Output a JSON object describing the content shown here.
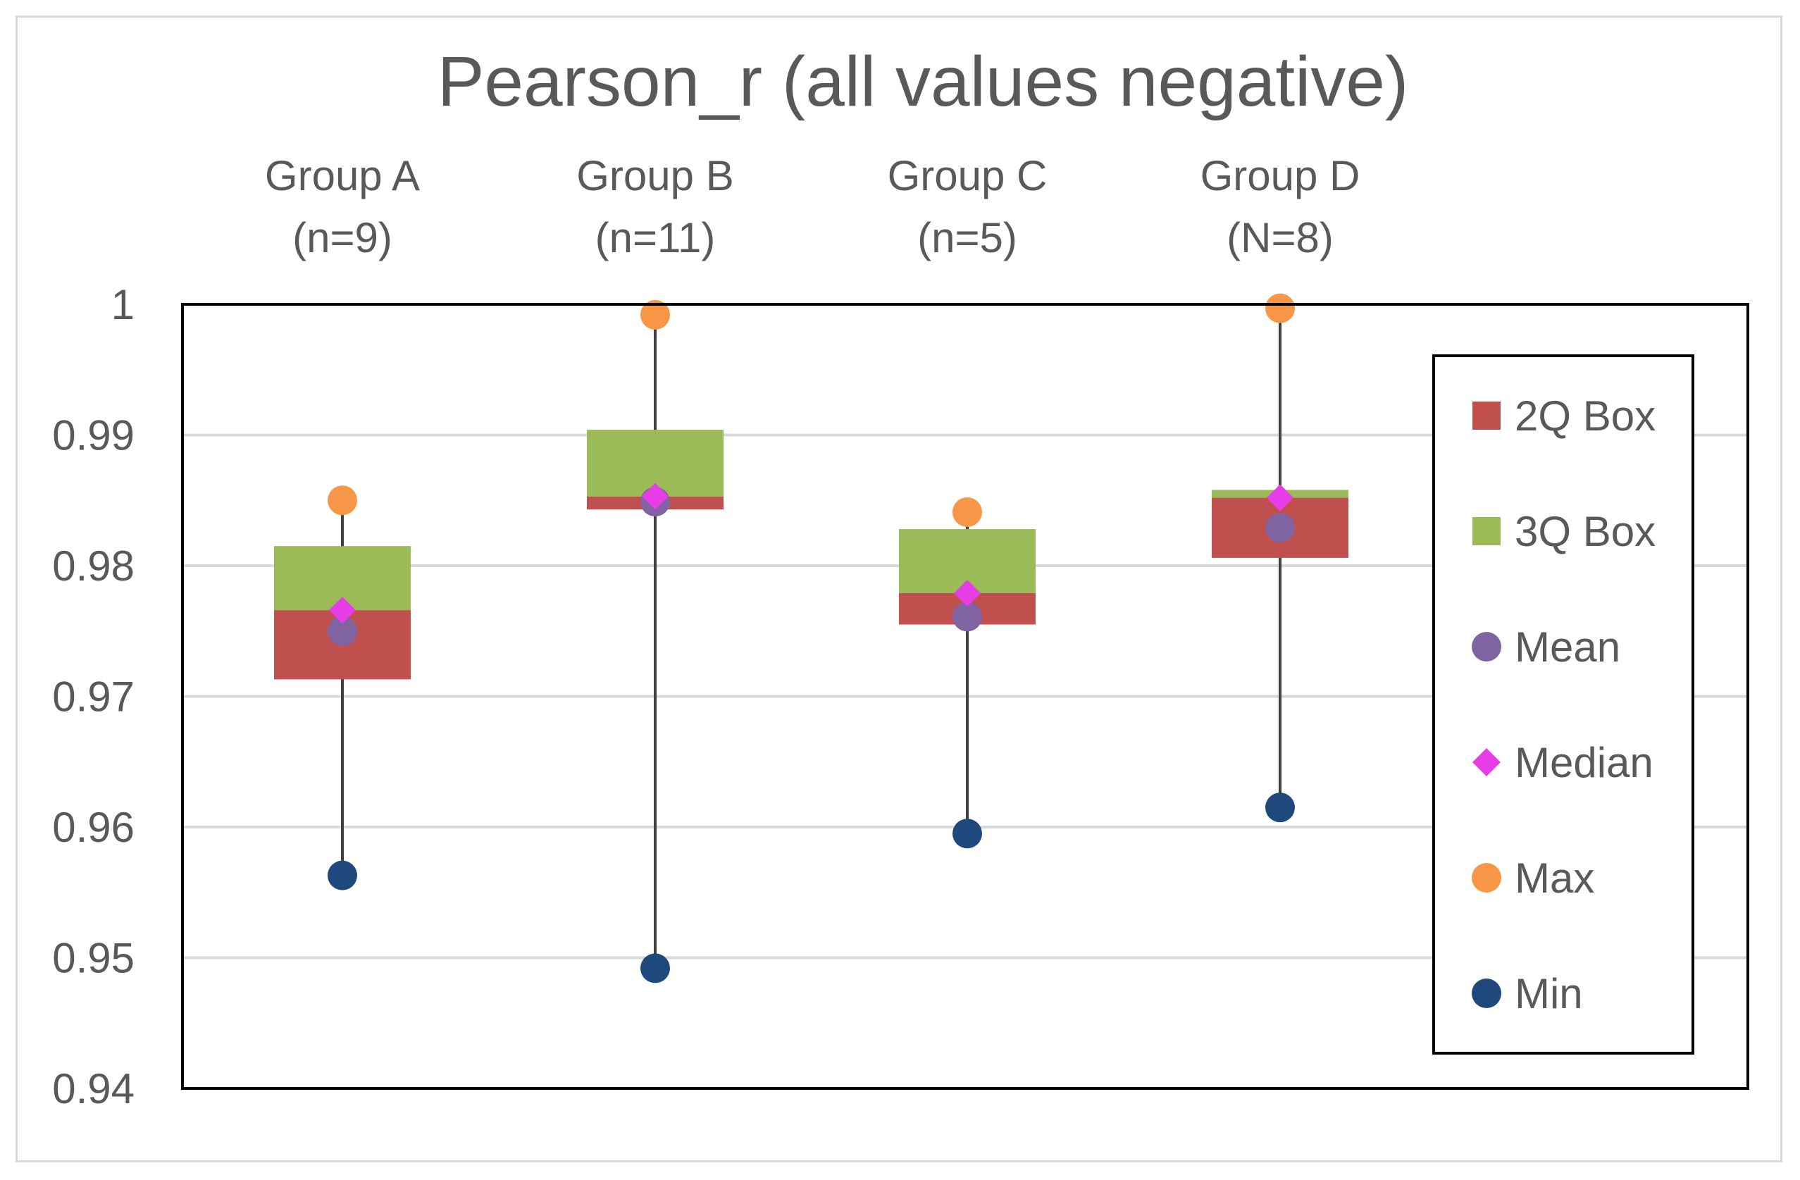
{
  "chart_data": {
    "type": "box",
    "title": "Pearson_r  (all values negative)",
    "ylim": [
      0.94,
      1.0
    ],
    "ytick_labels": [
      "0.94",
      "0.95",
      "0.96",
      "0.97",
      "0.98",
      "0.99",
      "1"
    ],
    "yticks": [
      0.94,
      0.95,
      0.96,
      0.97,
      0.98,
      0.99,
      1.0
    ],
    "groups": [
      {
        "name": "Group A",
        "n_label": "(n=9)",
        "min": 0.9563,
        "q1": 0.9713,
        "median": 0.9766,
        "q3": 0.9815,
        "mean": 0.975,
        "max": 0.985
      },
      {
        "name": "Group B",
        "n_label": "(n=11)",
        "min": 0.9492,
        "q1": 0.9843,
        "median": 0.9853,
        "q3": 0.9904,
        "mean": 0.9849,
        "max": 0.9992
      },
      {
        "name": "Group C",
        "n_label": "(n=5)",
        "min": 0.9595,
        "q1": 0.9755,
        "median": 0.9779,
        "q3": 0.9828,
        "mean": 0.9761,
        "max": 0.9841
      },
      {
        "name": "Group D",
        "n_label": "(N=8)",
        "min": 0.9615,
        "q1": 0.9806,
        "median": 0.9852,
        "q3": 0.9858,
        "mean": 0.9829,
        "max": 0.9997
      }
    ],
    "legend": {
      "position": "right",
      "items": [
        {
          "label": "2Q Box",
          "marker": "square",
          "color": "#c0504d"
        },
        {
          "label": "3Q Box",
          "marker": "square",
          "color": "#9bbb59"
        },
        {
          "label": "Mean",
          "marker": "circle",
          "color": "#8064a2"
        },
        {
          "label": "Median",
          "marker": "diamond",
          "color": "#e63de6"
        },
        {
          "label": "Max",
          "marker": "circle",
          "color": "#f79646"
        },
        {
          "label": "Min",
          "marker": "circle",
          "color": "#1f497d"
        }
      ]
    },
    "colors": {
      "box_2q": "#c0504d",
      "box_3q": "#9bbb59",
      "mean": "#8064a2",
      "median": "#e63de6",
      "max": "#f79646",
      "min": "#1f497d",
      "whisker": "#404040",
      "gridline": "#d9d9d9",
      "text": "#595959"
    }
  }
}
